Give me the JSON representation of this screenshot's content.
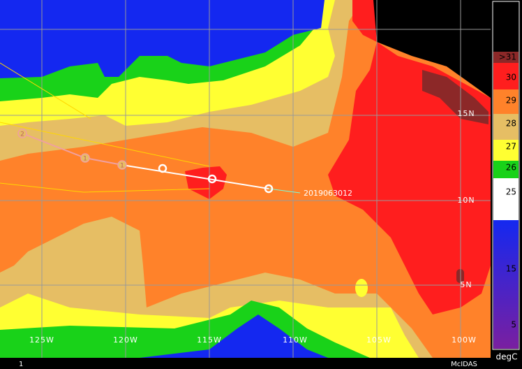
{
  "map": {
    "lon_labels": [
      "125W",
      "120W",
      "115W",
      "110W",
      "105W",
      "100W"
    ],
    "lat_labels": [
      "15N",
      "10N",
      "5N"
    ]
  },
  "track": {
    "labels": [
      "2",
      "1",
      "1"
    ],
    "time_label": "2019063012"
  },
  "colorbar": {
    "labels": [
      ">31",
      "30",
      "29",
      "28",
      "27",
      "26",
      "25",
      "15",
      "5"
    ],
    "unit": "degC"
  },
  "footer": {
    "frame": "1",
    "brand": "McIDAS"
  }
}
